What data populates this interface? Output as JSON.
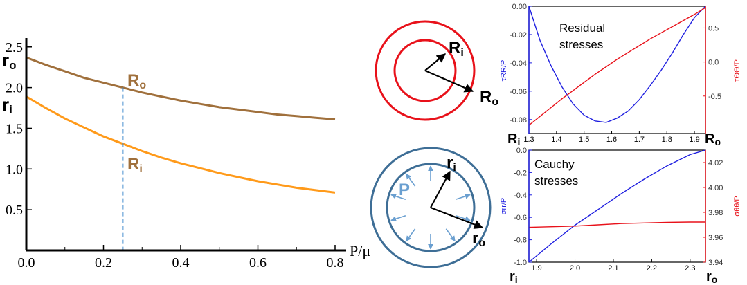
{
  "colors": {
    "brown": "#a0703c",
    "orange": "#ff9a1a",
    "dash": "#4a90d0",
    "red": "#e8111a",
    "blue": "#1f1fe0",
    "steel": "#3e6e96",
    "arrowblue": "#6a9fd0",
    "black": "#000000"
  },
  "labels": {
    "ro": "r",
    "ro_sub": "o",
    "ri": "r",
    "ri_sub": "i",
    "Ro": "R",
    "Ro_sub": "o",
    "Ri": "R",
    "Ri_sub": "i",
    "P": "P",
    "residual_line1": "Residual",
    "residual_line2": "stresses",
    "cauchy_line1": "Cauchy",
    "cauchy_line2": "stresses"
  },
  "chart_data": [
    {
      "type": "line",
      "xlabel": "P/μ",
      "xlim": [
        0,
        0.8
      ],
      "ylim": [
        0,
        2.6
      ],
      "xticks": [
        "0.0",
        "0.2",
        "0.4",
        "0.6",
        "0.8"
      ],
      "yticks": [
        "0.5",
        "1.0",
        "1.5",
        "2.0",
        "2.5"
      ],
      "x": [
        0,
        0.05,
        0.1,
        0.15,
        0.2,
        0.25,
        0.3,
        0.35,
        0.4,
        0.45,
        0.5,
        0.55,
        0.6,
        0.65,
        0.7,
        0.75,
        0.8
      ],
      "series": [
        {
          "name": "Ro",
          "color": "brown",
          "values": [
            2.37,
            2.28,
            2.2,
            2.12,
            2.06,
            2.0,
            1.94,
            1.89,
            1.84,
            1.8,
            1.76,
            1.73,
            1.7,
            1.67,
            1.65,
            1.63,
            1.61
          ]
        },
        {
          "name": "Ri",
          "color": "orange",
          "values": [
            1.89,
            1.75,
            1.62,
            1.51,
            1.4,
            1.31,
            1.22,
            1.14,
            1.07,
            1.01,
            0.95,
            0.9,
            0.85,
            0.81,
            0.77,
            0.74,
            0.71
          ]
        }
      ],
      "marker_x": 0.25,
      "y_special_labels": {
        "ro_at": 2.37,
        "ri_at": 1.89
      }
    },
    {
      "type": "line",
      "title": "Residual stresses",
      "ylabel_left": "τRR/P",
      "ylabel_right": "τΘΘ/P",
      "xlim": [
        1.3,
        1.94
      ],
      "ylim_left": [
        -0.085,
        0
      ],
      "ylim_right": [
        -0.95,
        0.82
      ],
      "xticks": [
        "1.3",
        "1.4",
        "1.5",
        "1.6",
        "1.7",
        "1.8",
        "1.9"
      ],
      "yticks_left": [
        "0.00",
        "-0.02",
        "-0.04",
        "-0.06",
        "-0.08"
      ],
      "yticks_right": [
        "0.5",
        "0.0",
        "-0.5"
      ],
      "x": [
        1.3,
        1.34,
        1.38,
        1.42,
        1.46,
        1.5,
        1.54,
        1.58,
        1.62,
        1.66,
        1.7,
        1.74,
        1.78,
        1.82,
        1.86,
        1.9,
        1.94
      ],
      "series": [
        {
          "name": "τRR/P",
          "axis": "left",
          "color": "blue",
          "values": [
            0,
            -0.024,
            -0.042,
            -0.057,
            -0.069,
            -0.077,
            -0.081,
            -0.082,
            -0.079,
            -0.074,
            -0.066,
            -0.056,
            -0.045,
            -0.033,
            -0.02,
            -0.008,
            0
          ]
        },
        {
          "name": "τΘΘ/P",
          "axis": "right",
          "color": "red",
          "values": [
            -0.93,
            -0.8,
            -0.67,
            -0.54,
            -0.42,
            -0.3,
            -0.18,
            -0.07,
            0.04,
            0.14,
            0.24,
            0.34,
            0.43,
            0.52,
            0.61,
            0.7,
            0.8
          ]
        }
      ]
    },
    {
      "type": "line",
      "title": "Cauchy stresses",
      "ylabel_left": "σrr/P",
      "ylabel_right": "σθθ/P",
      "xlim": [
        1.88,
        2.34
      ],
      "ylim_left": [
        -1.0,
        0
      ],
      "ylim_right": [
        3.94,
        4.03
      ],
      "xticks": [
        "1.9",
        "2.0",
        "2.1",
        "2.2",
        "2.3"
      ],
      "yticks_left": [
        "0.0",
        "-0.2",
        "-0.4",
        "-0.6",
        "-0.8",
        "-1.0"
      ],
      "yticks_right": [
        "4.02",
        "4.00",
        "3.98",
        "3.96",
        "3.94"
      ],
      "x": [
        1.88,
        1.94,
        2.0,
        2.06,
        2.12,
        2.18,
        2.24,
        2.3,
        2.34
      ],
      "series": [
        {
          "name": "σrr/P",
          "axis": "left",
          "color": "blue",
          "values": [
            -1.0,
            -0.83,
            -0.67,
            -0.53,
            -0.39,
            -0.26,
            -0.14,
            -0.04,
            0.0
          ]
        },
        {
          "name": "σθθ/P",
          "axis": "right",
          "color": "red",
          "values": [
            3.968,
            3.9685,
            3.969,
            3.97,
            3.971,
            3.9715,
            3.972,
            3.9722,
            3.9722
          ]
        }
      ]
    }
  ]
}
